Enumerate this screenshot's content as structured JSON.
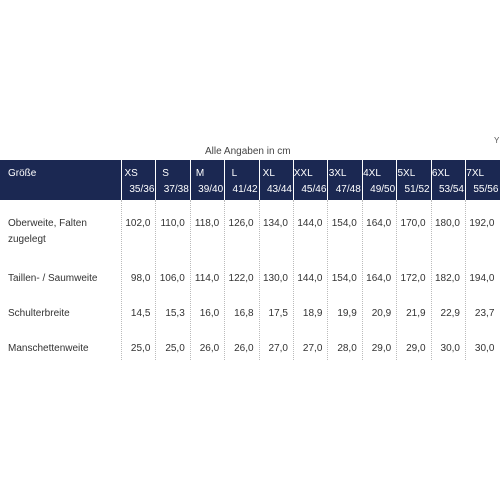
{
  "caption": "Alle Angaben in cm",
  "corner_fragment": "Y",
  "table": {
    "header_label": "Größe",
    "sizes": [
      {
        "name": "XS",
        "range": "35/36"
      },
      {
        "name": "S",
        "range": "37/38"
      },
      {
        "name": "M",
        "range": "39/40"
      },
      {
        "name": "L",
        "range": "41/42"
      },
      {
        "name": "XL",
        "range": "43/44"
      },
      {
        "name": "XXL",
        "range": "45/46"
      },
      {
        "name": "3XL",
        "range": "47/48"
      },
      {
        "name": "4XL",
        "range": "49/50"
      },
      {
        "name": "5XL",
        "range": "51/52"
      },
      {
        "name": "6XL",
        "range": "53/54"
      },
      {
        "name": "7XL",
        "range": "55/56"
      }
    ],
    "rows": [
      {
        "label": "Oberweite, Falten zugelegt",
        "values": [
          "102,0",
          "110,0",
          "118,0",
          "126,0",
          "134,0",
          "144,0",
          "154,0",
          "164,0",
          "170,0",
          "180,0",
          "192,0"
        ]
      },
      {
        "label": "Taillen- / Saumweite",
        "values": [
          "98,0",
          "106,0",
          "114,0",
          "122,0",
          "130,0",
          "144,0",
          "154,0",
          "164,0",
          "172,0",
          "182,0",
          "194,0"
        ]
      },
      {
        "label": "Schulterbreite",
        "values": [
          "14,5",
          "15,3",
          "16,0",
          "16,8",
          "17,5",
          "18,9",
          "19,9",
          "20,9",
          "21,9",
          "22,9",
          "23,7"
        ]
      },
      {
        "label": "Manschettenweite",
        "values": [
          "25,0",
          "25,0",
          "26,0",
          "26,0",
          "27,0",
          "27,0",
          "28,0",
          "29,0",
          "29,0",
          "30,0",
          "30,0"
        ]
      }
    ]
  }
}
